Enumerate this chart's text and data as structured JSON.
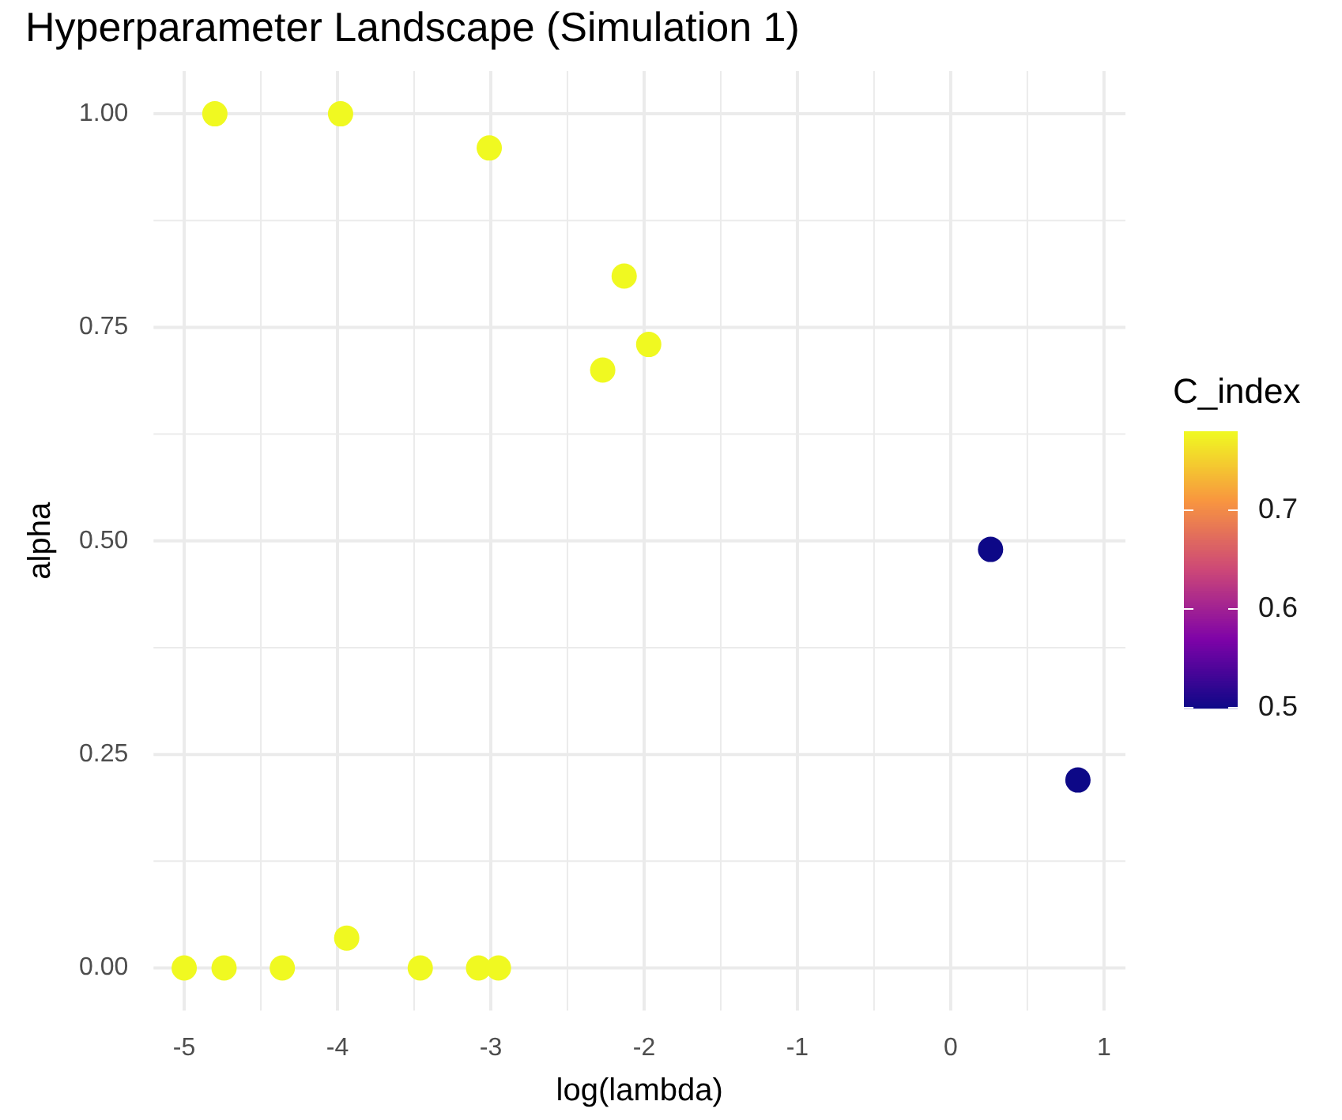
{
  "chart_data": {
    "type": "scatter",
    "title": "Hyperparameter Landscape (Simulation 1)",
    "xlabel": "log(lambda)",
    "ylabel": "alpha",
    "clabel": "C_index",
    "x": [
      -4.8,
      -3.98,
      -3.01,
      -2.13,
      -1.97,
      -2.27,
      0.26,
      0.83,
      -5.0,
      -4.74,
      -4.36,
      -3.94,
      -3.46,
      -3.08,
      -2.95
    ],
    "values": [
      1.0,
      1.0,
      0.96,
      0.81,
      0.73,
      0.7,
      0.49,
      0.22,
      0.0,
      0.0,
      0.0,
      0.035,
      0.0,
      0.0,
      0.0
    ],
    "cvalues": [
      0.78,
      0.78,
      0.78,
      0.78,
      0.78,
      0.78,
      0.5,
      0.5,
      0.78,
      0.78,
      0.78,
      0.78,
      0.78,
      0.78,
      0.78
    ],
    "clim": [
      0.5,
      0.78
    ],
    "cticks": [
      0.5,
      0.6,
      0.7
    ],
    "xlim": [
      -5.2,
      1.14
    ],
    "ylim": [
      -0.05,
      1.05
    ],
    "xticks": [
      -5,
      -4,
      -3,
      -2,
      -1,
      0,
      1
    ],
    "yticks": [
      {
        "value": 0,
        "label": "0.00"
      },
      {
        "value": 0.25,
        "label": "0.25"
      },
      {
        "value": 0.5,
        "label": "0.50"
      },
      {
        "value": 0.75,
        "label": "0.75"
      },
      {
        "value": 1,
        "label": "1.00"
      }
    ],
    "grid": true,
    "marker": "circle"
  }
}
